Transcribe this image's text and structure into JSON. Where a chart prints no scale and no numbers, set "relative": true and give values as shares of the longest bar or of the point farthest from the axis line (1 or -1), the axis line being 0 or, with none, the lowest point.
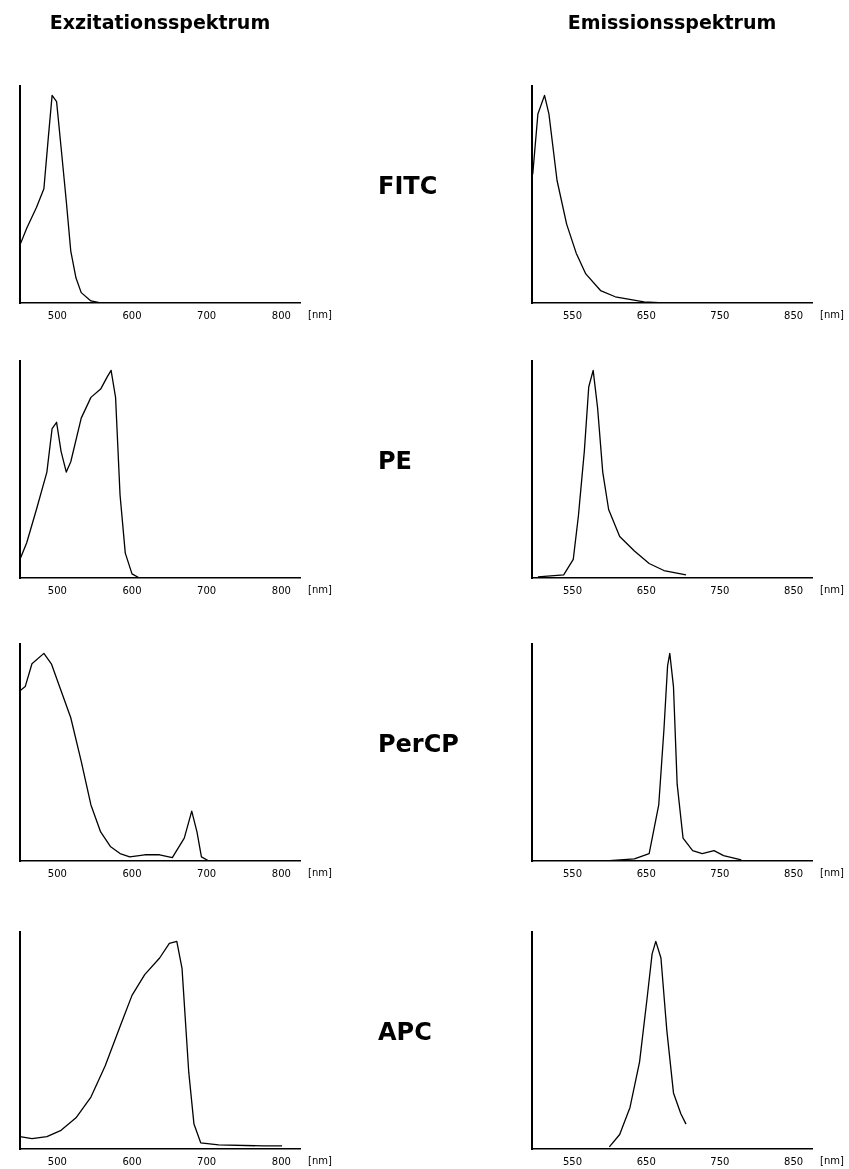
{
  "chart_data": [
    {
      "type": "line",
      "title": "Exzitationsspektrum",
      "xlabel": "[nm]",
      "relative": true,
      "color": "#000000",
      "marker": "none",
      "xlim": [
        450,
        825
      ],
      "xticks": [
        500,
        600,
        700,
        800
      ],
      "x": [
        450,
        459,
        472,
        482,
        488,
        493,
        499,
        505,
        512,
        518,
        525,
        532,
        545,
        558
      ],
      "values": [
        0.28,
        0.36,
        0.46,
        0.55,
        0.8,
        1.0,
        0.97,
        0.75,
        0.49,
        0.25,
        0.12,
        0.05,
        0.01,
        0
      ]
    },
    {
      "type": "other",
      "title": "FITC"
    },
    {
      "type": "line",
      "title": "Emissionsspektrum",
      "xlabel": "[nm]",
      "relative": true,
      "color": "#000000",
      "marker": "none",
      "xlim": [
        495,
        875
      ],
      "xticks": [
        550,
        650,
        750,
        850
      ],
      "x": [
        496,
        503,
        512,
        518,
        529,
        542,
        555,
        568,
        588,
        608,
        647,
        674
      ],
      "values": [
        0.62,
        0.91,
        1.0,
        0.91,
        0.59,
        0.38,
        0.24,
        0.14,
        0.06,
        0.03,
        0.005,
        0
      ]
    },
    {
      "type": "line",
      "xlabel": "[nm]",
      "relative": true,
      "color": "#000000",
      "marker": "none",
      "xlim": [
        450,
        825
      ],
      "xticks": [
        500,
        600,
        700,
        800
      ],
      "x": [
        450,
        459,
        472,
        486,
        493,
        499,
        505,
        512,
        518,
        532,
        545,
        558,
        567,
        572,
        578,
        584,
        591,
        600,
        610
      ],
      "values": [
        0.09,
        0.17,
        0.33,
        0.51,
        0.72,
        0.75,
        0.61,
        0.51,
        0.56,
        0.77,
        0.87,
        0.91,
        0.97,
        1.0,
        0.87,
        0.4,
        0.12,
        0.02,
        0
      ]
    },
    {
      "type": "other",
      "title": "PE"
    },
    {
      "type": "line",
      "xlabel": "[nm]",
      "relative": true,
      "color": "#000000",
      "marker": "none",
      "xlim": [
        495,
        875
      ],
      "xticks": [
        550,
        650,
        750,
        850
      ],
      "x": [
        503,
        538,
        551,
        558,
        566,
        572,
        578,
        584,
        591,
        599,
        614,
        634,
        654,
        674,
        704
      ],
      "values": [
        0.005,
        0.015,
        0.09,
        0.3,
        0.61,
        0.92,
        1.0,
        0.82,
        0.51,
        0.33,
        0.2,
        0.13,
        0.07,
        0.036,
        0.015
      ]
    },
    {
      "type": "line",
      "xlabel": "[nm]",
      "relative": true,
      "color": "#000000",
      "marker": "none",
      "xlim": [
        450,
        825
      ],
      "xticks": [
        500,
        600,
        700,
        800
      ],
      "x": [
        450,
        457,
        466,
        482,
        492,
        505,
        518,
        532,
        545,
        558,
        571,
        584,
        597,
        617,
        637,
        654,
        670,
        680,
        687,
        693,
        703
      ],
      "values": [
        0.82,
        0.84,
        0.95,
        1.0,
        0.95,
        0.82,
        0.69,
        0.48,
        0.27,
        0.14,
        0.07,
        0.036,
        0.02,
        0.03,
        0.03,
        0.016,
        0.11,
        0.24,
        0.14,
        0.02,
        0
      ]
    },
    {
      "type": "other",
      "title": "PerCP"
    },
    {
      "type": "line",
      "xlabel": "[nm]",
      "relative": true,
      "color": "#000000",
      "marker": "none",
      "xlim": [
        495,
        875
      ],
      "xticks": [
        550,
        650,
        750,
        850
      ],
      "x": [
        595,
        634,
        654,
        667,
        674,
        679,
        682,
        687,
        692,
        700,
        713,
        726,
        742,
        755,
        779
      ],
      "values": [
        0,
        0.01,
        0.036,
        0.27,
        0.63,
        0.94,
        1.0,
        0.84,
        0.37,
        0.11,
        0.05,
        0.036,
        0.05,
        0.026,
        0.005
      ]
    },
    {
      "type": "line",
      "xlabel": "[nm]",
      "relative": true,
      "color": "#000000",
      "marker": "none",
      "xlim": [
        450,
        825
      ],
      "xticks": [
        500,
        600,
        700,
        800
      ],
      "x": [
        450,
        466,
        486,
        505,
        525,
        545,
        564,
        584,
        600,
        617,
        637,
        650,
        660,
        667,
        676,
        683,
        692,
        716,
        775,
        801
      ],
      "values": [
        0.06,
        0.05,
        0.06,
        0.09,
        0.15,
        0.25,
        0.4,
        0.59,
        0.74,
        0.84,
        0.92,
        0.99,
        1.0,
        0.87,
        0.37,
        0.12,
        0.03,
        0.02,
        0.015,
        0.015
      ]
    },
    {
      "type": "other",
      "title": "APC"
    },
    {
      "type": "line",
      "xlabel": "[nm]",
      "relative": true,
      "color": "#000000",
      "marker": "none",
      "xlim": [
        495,
        875
      ],
      "xticks": [
        550,
        650,
        750,
        850
      ],
      "x": [
        600,
        614,
        628,
        641,
        651,
        658,
        663,
        670,
        678,
        687,
        697,
        704
      ],
      "values": [
        0.01,
        0.07,
        0.2,
        0.42,
        0.72,
        0.94,
        1.0,
        0.92,
        0.57,
        0.27,
        0.17,
        0.12
      ]
    }
  ]
}
